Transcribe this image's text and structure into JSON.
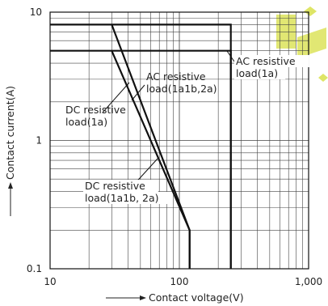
{
  "chart_data": {
    "type": "line",
    "xlabel": "Contact voltage(V)",
    "ylabel": "Contact current(A)",
    "x_scale": "log",
    "y_scale": "log",
    "xlim": [
      10,
      1000
    ],
    "ylim": [
      0.1,
      10
    ],
    "x_ticks": [
      "10",
      "100",
      "1,000"
    ],
    "y_ticks": [
      "0.1",
      "1",
      "10"
    ],
    "grid": true,
    "series": [
      {
        "name": "AC resistive load(1a)",
        "points": [
          [
            10,
            8
          ],
          [
            250,
            8
          ],
          [
            250,
            0.1
          ]
        ]
      },
      {
        "name": "AC resistive load(1a1b,2a)",
        "points": [
          [
            10,
            5
          ],
          [
            250,
            5
          ],
          [
            250,
            0.1
          ]
        ]
      },
      {
        "name": "DC resistive load(1a)",
        "points": [
          [
            30,
            8
          ],
          [
            120,
            0.2
          ],
          [
            120,
            0.1
          ]
        ]
      },
      {
        "name": "DC resistive load(1a1b, 2a)",
        "points": [
          [
            30,
            5
          ],
          [
            120,
            0.2
          ],
          [
            120,
            0.1
          ]
        ]
      }
    ],
    "annotations": [
      {
        "id": "ac1a",
        "lines": [
          "AC resistive",
          "load(1a)"
        ]
      },
      {
        "id": "ac2a",
        "lines": [
          "AC resistive",
          "load(1a1b,2a)"
        ]
      },
      {
        "id": "dc1a",
        "lines": [
          "DC resistive",
          "load(1a)"
        ]
      },
      {
        "id": "dc2a",
        "lines": [
          "DC resistive",
          "load(1a1b, 2a)"
        ]
      }
    ],
    "colors": {
      "line": "#111111",
      "grid": "#444444",
      "watermark": "#c8d400"
    }
  }
}
